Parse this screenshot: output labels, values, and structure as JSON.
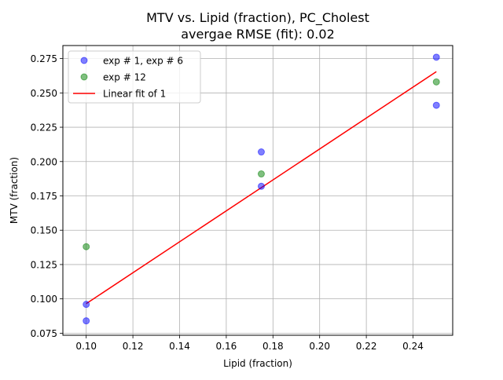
{
  "chart_data": {
    "type": "scatter",
    "title": "MTV vs. Lipid (fraction), PC_Cholest",
    "subtitle": "avergae RMSE (fit): 0.02",
    "xlabel": "Lipid (fraction)",
    "ylabel": "MTV (fraction)",
    "xlim": [
      0.09,
      0.257
    ],
    "ylim": [
      0.0735,
      0.2845
    ],
    "xticks": [
      0.1,
      0.12,
      0.14,
      0.16,
      0.18,
      0.2,
      0.22,
      0.24
    ],
    "xtick_labels": [
      "0.10",
      "0.12",
      "0.14",
      "0.16",
      "0.18",
      "0.20",
      "0.22",
      "0.24"
    ],
    "yticks": [
      0.075,
      0.1,
      0.125,
      0.15,
      0.175,
      0.2,
      0.225,
      0.25,
      0.275
    ],
    "ytick_labels": [
      "0.075",
      "0.100",
      "0.125",
      "0.150",
      "0.175",
      "0.200",
      "0.225",
      "0.250",
      "0.275"
    ],
    "grid": true,
    "legend_position": "top-left",
    "series": [
      {
        "name": "exp # 1, exp # 6",
        "kind": "scatter",
        "color": "#0000ff",
        "points": [
          [
            0.1,
            0.096
          ],
          [
            0.1,
            0.084
          ],
          [
            0.175,
            0.207
          ],
          [
            0.175,
            0.182
          ],
          [
            0.25,
            0.276
          ],
          [
            0.25,
            0.241
          ]
        ]
      },
      {
        "name": "exp # 12",
        "kind": "scatter",
        "color": "#008000",
        "points": [
          [
            0.1,
            0.138
          ],
          [
            0.175,
            0.191
          ],
          [
            0.25,
            0.258
          ]
        ]
      },
      {
        "name": "Linear fit of 1",
        "kind": "line",
        "color": "#ff0000",
        "points": [
          [
            0.1,
            0.0965
          ],
          [
            0.25,
            0.2655
          ]
        ]
      }
    ]
  }
}
